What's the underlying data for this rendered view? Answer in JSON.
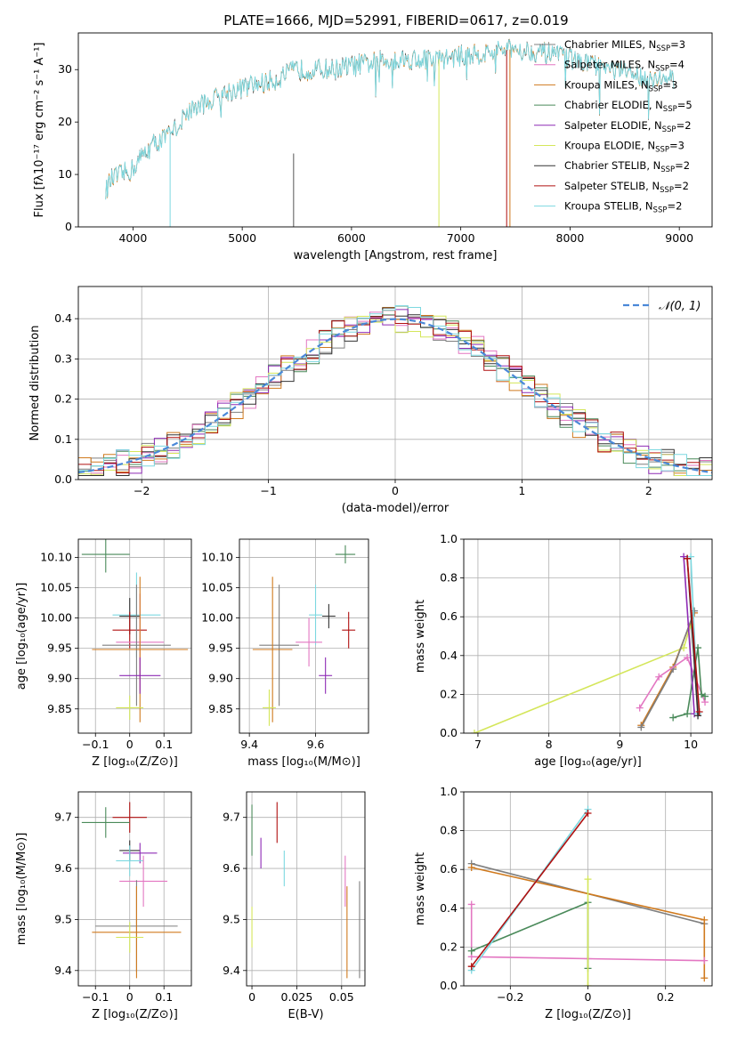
{
  "figure_title": "PLATE=1666, MJD=52991, FIBERID=0617, z=0.019",
  "legend_entries": [
    {
      "label": "Chabrier MILES, N",
      "sub": "SSP",
      "suffix": "=3",
      "color": "#7f7f7f"
    },
    {
      "label": "Salpeter MILES, N",
      "sub": "SSP",
      "suffix": "=4",
      "color": "#e377c2"
    },
    {
      "label": "Kroupa MILES, N",
      "sub": "SSP",
      "suffix": "=3",
      "color": "#d07a1e"
    },
    {
      "label": "Chabrier ELODIE, N",
      "sub": "SSP",
      "suffix": "=5",
      "color": "#4a8a5a"
    },
    {
      "label": "Salpeter ELODIE, N",
      "sub": "SSP",
      "suffix": "=2",
      "color": "#8e2bb5"
    },
    {
      "label": "Kroupa ELODIE, N",
      "sub": "SSP",
      "suffix": "=3",
      "color": "#d4e65a"
    },
    {
      "label": "Chabrier STELIB, N",
      "sub": "SSP",
      "suffix": "=2",
      "color": "#333333"
    },
    {
      "label": "Salpeter STELIB, N",
      "sub": "SSP",
      "suffix": "=2",
      "color": "#b01010"
    },
    {
      "label": "Kroupa STELIB, N",
      "sub": "SSP",
      "suffix": "=2",
      "color": "#7dd8e0"
    }
  ],
  "hist_legend": {
    "label": "𝒩(0, 1)",
    "color": "#4a88d8"
  },
  "chart_data": [
    {
      "id": "spectrum",
      "type": "line",
      "xlabel": "wavelength [Angstrom, rest frame]",
      "ylabel": "Flux [fλ10⁻¹⁷ erg cm⁻² s⁻¹ A⁻¹]",
      "xlim": [
        3500,
        9300
      ],
      "ylim": [
        0,
        37
      ],
      "xticks": [
        4000,
        5000,
        6000,
        7000,
        8000,
        9000
      ],
      "yticks": [
        0,
        10,
        20,
        30
      ],
      "envelope_x": [
        3750,
        3800,
        3900,
        4000,
        4100,
        4200,
        4300,
        4400,
        4500,
        4700,
        4900,
        5100,
        5300,
        5500,
        5800,
        6100,
        6400,
        6800,
        7200,
        7500,
        7800,
        8200,
        8600,
        8900
      ],
      "envelope_y": [
        7,
        9,
        10,
        11,
        14,
        16,
        17,
        19,
        22,
        24,
        26,
        27,
        28,
        30,
        30,
        31,
        32,
        32,
        33,
        34,
        33,
        31,
        29,
        28
      ],
      "model_truncation": [
        {
          "series": "Kroupa ELODIE",
          "x_end": 6800
        },
        {
          "series": "Salpeter STELIB",
          "x_end": 7420
        }
      ]
    },
    {
      "id": "residual_histogram",
      "type": "step",
      "xlabel": "(data-model)/error",
      "ylabel": "Normed distribution",
      "xlim": [
        -2.5,
        2.5
      ],
      "ylim": [
        0,
        0.48
      ],
      "xticks": [
        -2,
        -1,
        0,
        1,
        2
      ],
      "yticks": [
        0.0,
        0.1,
        0.2,
        0.3,
        0.4
      ],
      "bin_width": 0.1,
      "reference": "normal(0,1)"
    },
    {
      "id": "age_vs_Z",
      "type": "errorbar",
      "xlabel": "Z [log₁₀(Z/Z⊙)]",
      "ylabel": "age  [log₁₀(age/yr)]",
      "xlim": [
        -0.15,
        0.18
      ],
      "ylim": [
        9.81,
        10.13
      ],
      "xticks": [
        -0.1,
        0.0,
        0.1
      ],
      "yticks": [
        9.85,
        9.9,
        9.95,
        10.0,
        10.05,
        10.1
      ],
      "points": [
        {
          "series": "Chabrier ELODIE",
          "x": -0.07,
          "xerr": 0.07,
          "y": 10.105,
          "yerr": 0.03
        },
        {
          "series": "Kroupa STELIB",
          "x": 0.02,
          "xerr": 0.07,
          "y": 10.005,
          "yerr": 0.07
        },
        {
          "series": "Chabrier STELIB",
          "x": 0.0,
          "xerr": 0.03,
          "y": 10.003,
          "yerr": 0.03
        },
        {
          "series": "Salpeter STELIB",
          "x": 0.0,
          "xerr": 0.05,
          "y": 9.98,
          "yerr": 0.03
        },
        {
          "series": "Salpeter MILES",
          "x": 0.03,
          "xerr": 0.07,
          "y": 9.96,
          "yerr": 0.08
        },
        {
          "series": "Chabrier MILES",
          "x": 0.02,
          "xerr": 0.1,
          "y": 9.955,
          "yerr": 0.1
        },
        {
          "series": "Kroupa MILES",
          "x": 0.03,
          "xerr": 0.14,
          "y": 9.948,
          "yerr": 0.12
        },
        {
          "series": "Salpeter ELODIE",
          "x": 0.03,
          "xerr": 0.06,
          "y": 9.905,
          "yerr": 0.03
        },
        {
          "series": "Kroupa ELODIE",
          "x": 0.0,
          "xerr": 0.04,
          "y": 9.852,
          "yerr": 0.02
        }
      ]
    },
    {
      "id": "age_vs_mass",
      "type": "errorbar",
      "xlabel": "mass [log₁₀(M/M⊙)]",
      "ylabel": "",
      "xlim": [
        9.37,
        9.76
      ],
      "ylim": [
        9.81,
        10.13
      ],
      "xticks": [
        9.4,
        9.6
      ],
      "yticks": [
        9.85,
        9.9,
        9.95,
        10.0,
        10.05,
        10.1
      ],
      "points": [
        {
          "series": "Chabrier ELODIE",
          "x": 9.69,
          "xerr": 0.03,
          "y": 10.105,
          "yerr": 0.015
        },
        {
          "series": "Kroupa STELIB",
          "x": 9.6,
          "xerr": 0.02,
          "y": 10.005,
          "yerr": 0.05
        },
        {
          "series": "Chabrier STELIB",
          "x": 9.64,
          "xerr": 0.02,
          "y": 10.003,
          "yerr": 0.02
        },
        {
          "series": "Salpeter STELIB",
          "x": 9.7,
          "xerr": 0.02,
          "y": 9.98,
          "yerr": 0.03
        },
        {
          "series": "Salpeter MILES",
          "x": 9.58,
          "xerr": 0.04,
          "y": 9.96,
          "yerr": 0.04
        },
        {
          "series": "Chabrier MILES",
          "x": 9.49,
          "xerr": 0.06,
          "y": 9.955,
          "yerr": 0.1
        },
        {
          "series": "Kroupa MILES",
          "x": 9.47,
          "xerr": 0.06,
          "y": 9.948,
          "yerr": 0.12
        },
        {
          "series": "Salpeter ELODIE",
          "x": 9.63,
          "xerr": 0.02,
          "y": 9.905,
          "yerr": 0.03
        },
        {
          "series": "Kroupa ELODIE",
          "x": 9.46,
          "xerr": 0.02,
          "y": 9.852,
          "yerr": 0.03
        }
      ]
    },
    {
      "id": "massweight_vs_age",
      "type": "line",
      "xlabel": "age  [log₁₀(age/yr)]",
      "ylabel": "mass weight",
      "xlim": [
        6.8,
        10.3
      ],
      "ylim": [
        0,
        1
      ],
      "xticks": [
        7,
        8,
        9,
        10
      ],
      "yticks": [
        0.0,
        0.2,
        0.4,
        0.6,
        0.8,
        1.0
      ],
      "series": [
        {
          "name": "Kroupa ELODIE",
          "x": [
            6.95,
            9.9,
            10.0
          ],
          "y": [
            0.0,
            0.44,
            0.56
          ]
        },
        {
          "name": "Kroupa MILES",
          "x": [
            9.3,
            9.75,
            10.05
          ],
          "y": [
            0.04,
            0.34,
            0.62
          ]
        },
        {
          "name": "Chabrier MILES",
          "x": [
            9.3,
            9.75,
            10.05
          ],
          "y": [
            0.03,
            0.33,
            0.63
          ]
        },
        {
          "name": "Salpeter MILES",
          "x": [
            9.28,
            9.55,
            9.95,
            10.2
          ],
          "y": [
            0.13,
            0.29,
            0.39,
            0.16
          ]
        },
        {
          "name": "Chabrier ELODIE",
          "x": [
            9.75,
            9.95,
            10.1,
            10.15,
            10.2
          ],
          "y": [
            0.08,
            0.1,
            0.44,
            0.2,
            0.19
          ]
        },
        {
          "name": "Salpeter ELODIE",
          "x": [
            9.9,
            10.05
          ],
          "y": [
            0.91,
            0.1
          ]
        },
        {
          "name": "Kroupa STELIB",
          "x": [
            10.0,
            10.1
          ],
          "y": [
            0.91,
            0.1
          ]
        },
        {
          "name": "Chabrier STELIB",
          "x": [
            9.95,
            10.1
          ],
          "y": [
            0.9,
            0.09
          ]
        },
        {
          "name": "Salpeter STELIB",
          "x": [
            9.95,
            10.12
          ],
          "y": [
            0.9,
            0.11
          ]
        }
      ]
    },
    {
      "id": "mass_vs_Z",
      "type": "errorbar",
      "xlabel": "Z [log₁₀(Z/Z⊙)]",
      "ylabel": "mass [log₁₀(M/M⊙)]",
      "xlim": [
        -0.15,
        0.18
      ],
      "ylim": [
        9.37,
        9.75
      ],
      "xticks": [
        -0.1,
        0.0,
        0.1
      ],
      "yticks": [
        9.4,
        9.5,
        9.6,
        9.7
      ],
      "points": [
        {
          "series": "Salpeter STELIB",
          "x": 0.0,
          "xerr": 0.05,
          "y": 9.7,
          "yerr": 0.03
        },
        {
          "series": "Chabrier ELODIE",
          "x": -0.07,
          "xerr": 0.07,
          "y": 9.69,
          "yerr": 0.03
        },
        {
          "series": "Chabrier STELIB",
          "x": 0.0,
          "xerr": 0.03,
          "y": 9.635,
          "yerr": 0.02
        },
        {
          "series": "Salpeter ELODIE",
          "x": 0.03,
          "xerr": 0.05,
          "y": 9.63,
          "yerr": 0.02
        },
        {
          "series": "Kroupa STELIB",
          "x": 0.0,
          "xerr": 0.04,
          "y": 9.615,
          "yerr": 0.03
        },
        {
          "series": "Salpeter MILES",
          "x": 0.04,
          "xerr": 0.07,
          "y": 9.575,
          "yerr": 0.05
        },
        {
          "series": "Chabrier MILES",
          "x": 0.02,
          "xerr": 0.12,
          "y": 9.487,
          "yerr": 0.09
        },
        {
          "series": "Kroupa MILES",
          "x": 0.02,
          "xerr": 0.13,
          "y": 9.475,
          "yerr": 0.09
        },
        {
          "series": "Kroupa ELODIE",
          "x": 0.0,
          "xerr": 0.04,
          "y": 9.465,
          "yerr": 0.03
        }
      ]
    },
    {
      "id": "mass_vs_EBV",
      "type": "errorbar",
      "xlabel": "E(B-V)",
      "ylabel": "",
      "xlim": [
        -0.003,
        0.063
      ],
      "ylim": [
        9.37,
        9.75
      ],
      "xticks": [
        0.0,
        0.025,
        0.05
      ],
      "yticks": [
        9.4,
        9.5,
        9.6,
        9.7
      ],
      "points": [
        {
          "series": "Chabrier ELODIE",
          "x": 0.0,
          "xerr": 0,
          "y": 9.675,
          "yerr": 0.05
        },
        {
          "series": "Salpeter STELIB",
          "x": 0.014,
          "xerr": 0,
          "y": 9.69,
          "yerr": 0.04
        },
        {
          "series": "Salpeter ELODIE",
          "x": 0.005,
          "xerr": 0,
          "y": 9.63,
          "yerr": 0.03
        },
        {
          "series": "Kroupa STELIB",
          "x": 0.018,
          "xerr": 0,
          "y": 9.6,
          "yerr": 0.035
        },
        {
          "series": "Kroupa ELODIE",
          "x": 0.0,
          "xerr": 0,
          "y": 9.485,
          "yerr": 0.04
        },
        {
          "series": "Salpeter MILES",
          "x": 0.052,
          "xerr": 0,
          "y": 9.575,
          "yerr": 0.05
        },
        {
          "series": "Kroupa MILES",
          "x": 0.053,
          "xerr": 0,
          "y": 9.475,
          "yerr": 0.09
        },
        {
          "series": "Chabrier MILES",
          "x": 0.06,
          "xerr": 0,
          "y": 9.48,
          "yerr": 0.095
        }
      ]
    },
    {
      "id": "massweight_vs_Z",
      "type": "line",
      "xlabel": "Z [log₁₀(Z/Z⊙)]",
      "ylabel": "mass weight",
      "xlim": [
        -0.32,
        0.32
      ],
      "ylim": [
        0,
        1
      ],
      "xticks": [
        -0.2,
        0.0,
        0.2
      ],
      "yticks": [
        0.0,
        0.2,
        0.4,
        0.6,
        0.8,
        1.0
      ],
      "series": [
        {
          "name": "Chabrier MILES",
          "x": [
            -0.3,
            0.3
          ],
          "y": [
            0.63,
            0.32
          ]
        },
        {
          "name": "Kroupa MILES",
          "x": [
            -0.3,
            0.3,
            0.3
          ],
          "y": [
            0.61,
            0.34,
            0.04
          ]
        },
        {
          "name": "Salpeter MILES",
          "x": [
            -0.3,
            -0.3,
            0.0,
            0.3
          ],
          "y": [
            0.42,
            0.15,
            0.14,
            0.13
          ]
        },
        {
          "name": "Chabrier ELODIE",
          "x": [
            -0.3,
            0.0,
            0.0
          ],
          "y": [
            0.18,
            0.43,
            0.09
          ]
        },
        {
          "name": "Kroupa ELODIE",
          "x": [
            0.0,
            0.0
          ],
          "y": [
            0.0,
            0.55
          ]
        },
        {
          "name": "Kroupa STELIB",
          "x": [
            -0.3,
            0.0
          ],
          "y": [
            0.08,
            0.91
          ]
        },
        {
          "name": "Salpeter STELIB",
          "x": [
            -0.3,
            0.0
          ],
          "y": [
            0.1,
            0.89
          ]
        }
      ]
    }
  ]
}
